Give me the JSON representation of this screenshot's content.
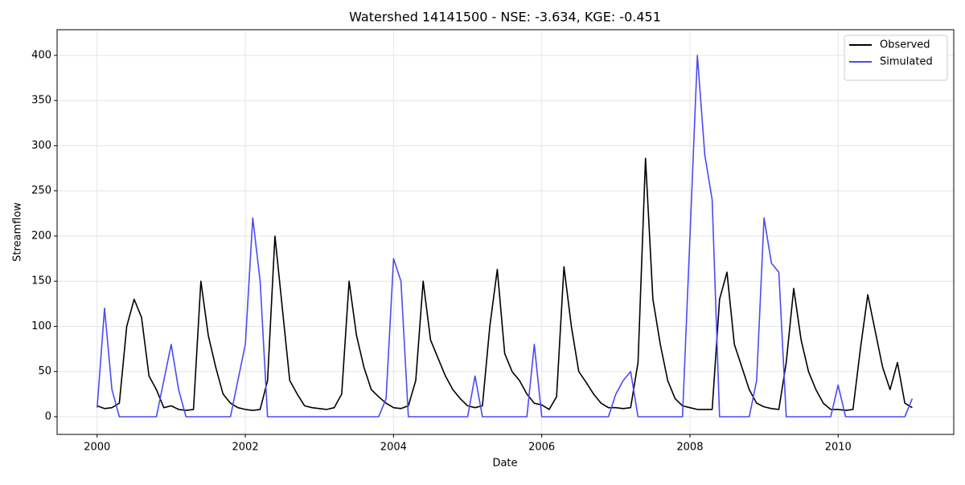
{
  "chart_data": {
    "type": "line",
    "title": "Watershed 14141500 - NSE: -3.634, KGE: -0.451",
    "xlabel": "Date",
    "ylabel": "Streamflow",
    "x": [
      2000.0,
      2000.1,
      2000.2,
      2000.3,
      2000.4,
      2000.5,
      2000.6,
      2000.7,
      2000.8,
      2000.9,
      2001.0,
      2001.1,
      2001.2,
      2001.3,
      2001.4,
      2001.5,
      2001.6,
      2001.7,
      2001.8,
      2001.9,
      2002.0,
      2002.1,
      2002.2,
      2002.3,
      2002.4,
      2002.5,
      2002.6,
      2002.7,
      2002.8,
      2002.9,
      2003.0,
      2003.1,
      2003.2,
      2003.3,
      2003.4,
      2003.5,
      2003.6,
      2003.7,
      2003.8,
      2003.9,
      2004.0,
      2004.1,
      2004.2,
      2004.3,
      2004.4,
      2004.5,
      2004.6,
      2004.7,
      2004.8,
      2004.9,
      2005.0,
      2005.1,
      2005.2,
      2005.3,
      2005.4,
      2005.5,
      2005.6,
      2005.7,
      2005.8,
      2005.9,
      2006.0,
      2006.1,
      2006.2,
      2006.3,
      2006.4,
      2006.5,
      2006.6,
      2006.7,
      2006.8,
      2006.9,
      2007.0,
      2007.1,
      2007.2,
      2007.3,
      2007.4,
      2007.5,
      2007.6,
      2007.7,
      2007.8,
      2007.9,
      2008.0,
      2008.1,
      2008.2,
      2008.3,
      2008.4,
      2008.5,
      2008.6,
      2008.7,
      2008.8,
      2008.9,
      2009.0,
      2009.1,
      2009.2,
      2009.3,
      2009.4,
      2009.5,
      2009.6,
      2009.7,
      2009.8,
      2009.9,
      2010.0,
      2010.1,
      2010.2,
      2010.3,
      2010.4,
      2010.5,
      2010.6,
      2010.7,
      2010.8,
      2010.9,
      2011.0
    ],
    "series": [
      {
        "name": "Observed",
        "color": "#000000",
        "values": [
          12,
          9,
          10,
          15,
          100,
          130,
          110,
          45,
          30,
          10,
          12,
          8,
          7,
          8,
          150,
          90,
          55,
          25,
          15,
          10,
          8,
          7,
          8,
          40,
          200,
          120,
          40,
          25,
          12,
          10,
          9,
          8,
          10,
          25,
          150,
          90,
          55,
          30,
          22,
          15,
          10,
          9,
          12,
          40,
          150,
          85,
          65,
          45,
          30,
          20,
          12,
          10,
          12,
          100,
          163,
          70,
          50,
          40,
          25,
          15,
          13,
          8,
          22,
          166,
          100,
          50,
          38,
          25,
          15,
          10,
          10,
          9,
          10,
          60,
          286,
          130,
          80,
          40,
          20,
          12,
          10,
          8,
          8,
          8,
          130,
          160,
          80,
          55,
          30,
          15,
          11,
          9,
          8,
          60,
          142,
          85,
          50,
          30,
          15,
          8,
          8,
          7,
          8,
          75,
          135,
          95,
          55,
          30,
          60,
          15,
          10
        ]
      },
      {
        "name": "Simulated",
        "color": "#4a4af5",
        "values": [
          10,
          120,
          30,
          0,
          0,
          0,
          0,
          0,
          0,
          40,
          80,
          30,
          0,
          0,
          0,
          0,
          0,
          0,
          0,
          40,
          80,
          220,
          150,
          0,
          0,
          0,
          0,
          0,
          0,
          0,
          0,
          0,
          0,
          0,
          0,
          0,
          0,
          0,
          0,
          20,
          175,
          150,
          0,
          0,
          0,
          0,
          0,
          0,
          0,
          0,
          0,
          45,
          0,
          0,
          0,
          0,
          0,
          0,
          0,
          80,
          0,
          0,
          0,
          0,
          0,
          0,
          0,
          0,
          0,
          0,
          25,
          40,
          50,
          0,
          0,
          0,
          0,
          0,
          0,
          0,
          200,
          400,
          290,
          240,
          0,
          0,
          0,
          0,
          0,
          40,
          220,
          170,
          160,
          0,
          0,
          0,
          0,
          0,
          0,
          0,
          35,
          0,
          0,
          0,
          0,
          0,
          0,
          0,
          0,
          0,
          20
        ]
      }
    ],
    "xlim": [
      1999.46,
      2011.56
    ],
    "xticks": [
      2000,
      2002,
      2004,
      2006,
      2008,
      2010
    ],
    "ylim": [
      -19.6,
      428.4
    ],
    "yticks": [
      0,
      50,
      100,
      150,
      200,
      250,
      300,
      350,
      400
    ],
    "grid": true,
    "legend": "upper right"
  }
}
